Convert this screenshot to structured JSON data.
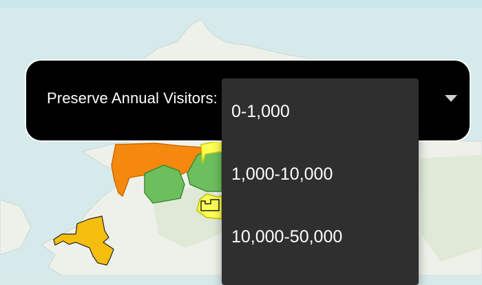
{
  "filter": {
    "label": "Preserve Annual Visitors:"
  },
  "dropdown": {
    "options": [
      "0-1,000",
      "1,000-10,000",
      "10,000-50,000"
    ]
  },
  "colors": {
    "panel_bg": "#000000",
    "dropdown_bg": "#2f2f2f",
    "tier_orange": "#f5880f",
    "tier_green": "#6dbf5e",
    "tier_yellow": "#ffff55",
    "tier_gold": "#f5be0f"
  },
  "icons": {
    "caret": "chevron-down-icon"
  }
}
